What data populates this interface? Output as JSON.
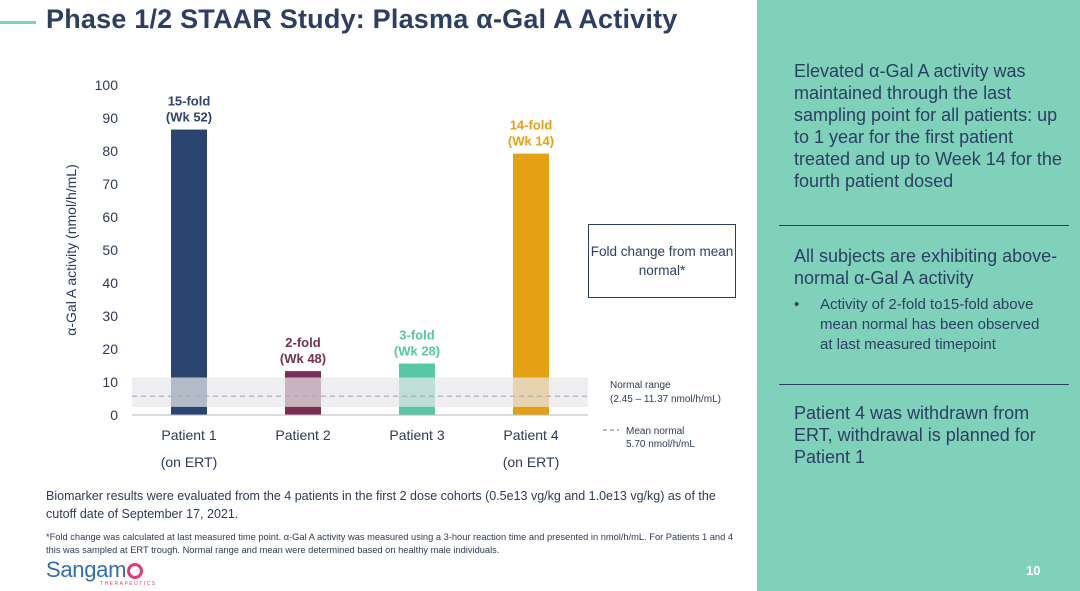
{
  "title": "Phase 1/2 STAAR Study: Plasma α-Gal A Activity",
  "right_panel": {
    "block1": "Elevated α-Gal A activity was maintained through the last sampling point for all patients: up to 1 year for the first patient treated and up to Week 14 for the fourth patient dosed",
    "block2": "All subjects are exhibiting above-normal α-Gal A activity",
    "bullet": "Activity of 2-fold to15-fold above mean normal has been observed at last measured timepoint",
    "block3": "Patient 4 was withdrawn from ERT, withdrawal is planned for Patient 1"
  },
  "fold_box": "Fold change from mean normal*",
  "biomarker_note": "Biomarker results were evaluated from the 4 patients in the first 2 dose cohorts (0.5e13 vg/kg and 1.0e13 vg/kg) as of the cutoff date of September 17, 2021.",
  "footnote": "*Fold change was calculated at last measured time point. α-Gal A activity was measured using a 3-hour reaction time and presented in nmol/h/mL. For Patients 1 and 4 this was sampled at ERT trough. Normal range and mean were determined based on healthy male individuals.",
  "logo": {
    "name_part1": "Sangam",
    "sub": "THERAPEUTICS"
  },
  "page_number": "10",
  "colors": {
    "accent": "#7fd1b9",
    "navy": "#2d3e64"
  },
  "chart_data": {
    "type": "bar",
    "ylabel": "α-Gal A activity (nmol/h/mL)",
    "ylim": [
      0,
      100
    ],
    "yticks": [
      "0",
      "10",
      "20",
      "30",
      "40",
      "50",
      "60",
      "70",
      "80",
      "90",
      "100"
    ],
    "categories": [
      "Patient 1",
      "Patient 2",
      "Patient 3",
      "Patient 4"
    ],
    "sublabels": [
      "(on ERT)",
      "",
      "",
      "(on ERT)"
    ],
    "values": [
      86.5,
      13.3,
      15.6,
      79.2
    ],
    "colors": [
      "#2b4570",
      "#7a2e52",
      "#57c7a4",
      "#e6a014"
    ],
    "annotations": [
      {
        "line1": "15-fold",
        "line2": "(Wk 52)",
        "color": "#2b4570"
      },
      {
        "line1": "2-fold",
        "line2": "(Wk 48)",
        "color": "#7a2e52"
      },
      {
        "line1": "3-fold",
        "line2": "(Wk 28)",
        "color": "#57c7a4"
      },
      {
        "line1": "14-fold",
        "line2": "(Wk 14)",
        "color": "#e6a014"
      }
    ],
    "normal_range": [
      2.45,
      11.37
    ],
    "mean_normal": 5.7,
    "normal_range_label": "Normal range",
    "normal_range_values": "(2.45 – 11.37 nmol/h/mL)",
    "mean_label": "Mean normal",
    "mean_value_label": "5.70 nmol/h/mL"
  }
}
